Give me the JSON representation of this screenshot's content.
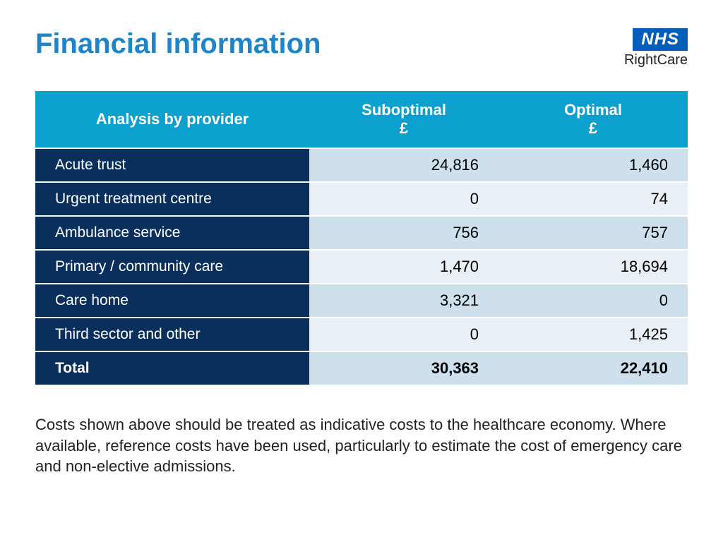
{
  "title": {
    "text": "Financial information",
    "color": "#1f84c8"
  },
  "logo": {
    "nhs_text": "NHS",
    "nhs_bg": "#005eb8",
    "sub_text": "RightCare"
  },
  "table": {
    "header_bg": "#0ca0ce",
    "label_col_bg": "#0a2f5c",
    "row_alt_bg_a": "#cde0eb",
    "row_alt_bg_b": "#e8eff5",
    "columns": [
      {
        "label": "Analysis by provider",
        "class": "lbl"
      },
      {
        "label": "Suboptimal\n£",
        "class": "num"
      },
      {
        "label": "Optimal\n£",
        "class": "num"
      }
    ],
    "rows": [
      {
        "label": "Acute trust",
        "suboptimal": "24,816",
        "optimal": "1,460",
        "shade": "a"
      },
      {
        "label": "Urgent treatment centre",
        "suboptimal": "0",
        "optimal": "74",
        "shade": "b"
      },
      {
        "label": "Ambulance service",
        "suboptimal": "756",
        "optimal": "757",
        "shade": "a"
      },
      {
        "label": "Primary / community care",
        "suboptimal": "1,470",
        "optimal": "18,694",
        "shade": "b"
      },
      {
        "label": "Care home",
        "suboptimal": "3,321",
        "optimal": "0",
        "shade": "a"
      },
      {
        "label": "Third sector and other",
        "suboptimal": "0",
        "optimal": "1,425",
        "shade": "b"
      },
      {
        "label": "Total",
        "suboptimal": "30,363",
        "optimal": "22,410",
        "shade": "a",
        "total": true
      }
    ]
  },
  "footnote": "Costs shown above should be treated as indicative costs to the healthcare economy. Where available, reference costs have been used, particularly to estimate the cost of emergency care and non-elective admissions."
}
